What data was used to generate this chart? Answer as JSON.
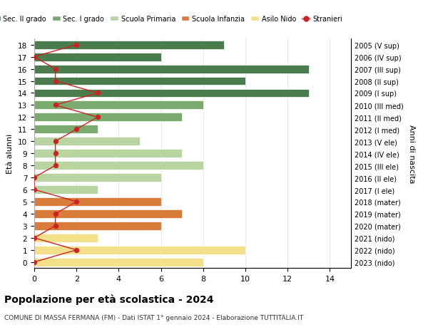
{
  "ages": [
    18,
    17,
    16,
    15,
    14,
    13,
    12,
    11,
    10,
    9,
    8,
    7,
    6,
    5,
    4,
    3,
    2,
    1,
    0
  ],
  "anni_nascita": [
    "2005 (V sup)",
    "2006 (IV sup)",
    "2007 (III sup)",
    "2008 (II sup)",
    "2009 (I sup)",
    "2010 (III med)",
    "2011 (II med)",
    "2012 (I med)",
    "2013 (V ele)",
    "2014 (IV ele)",
    "2015 (III ele)",
    "2016 (II ele)",
    "2017 (I ele)",
    "2018 (mater)",
    "2019 (mater)",
    "2020 (mater)",
    "2021 (nido)",
    "2022 (nido)",
    "2023 (nido)"
  ],
  "bar_values": [
    9,
    6,
    13,
    10,
    13,
    8,
    7,
    3,
    5,
    7,
    8,
    6,
    3,
    6,
    7,
    6,
    3,
    10,
    8
  ],
  "bar_colors": [
    "#4a7c4e",
    "#4a7c4e",
    "#4a7c4e",
    "#4a7c4e",
    "#4a7c4e",
    "#7aab6e",
    "#7aab6e",
    "#7aab6e",
    "#b8d4a0",
    "#b8d4a0",
    "#b8d4a0",
    "#b8d4a0",
    "#b8d4a0",
    "#d97b3a",
    "#d97b3a",
    "#d97b3a",
    "#f5e08a",
    "#f5e08a",
    "#f5e08a"
  ],
  "stranieri_values": [
    2,
    0,
    1,
    1,
    3,
    1,
    3,
    2,
    1,
    1,
    1,
    0,
    0,
    2,
    1,
    1,
    0,
    2,
    0
  ],
  "stranieri_color": "#cc2222",
  "legend_labels": [
    "Sec. II grado",
    "Sec. I grado",
    "Scuola Primaria",
    "Scuola Infanzia",
    "Asilo Nido",
    "Stranieri"
  ],
  "legend_colors": [
    "#4a7c4e",
    "#7aab6e",
    "#b8d4a0",
    "#d97b3a",
    "#f5e08a",
    "#cc2222"
  ],
  "title": "Popolazione per età scolastica - 2024",
  "subtitle": "COMUNE DI MASSA FERMANA (FM) - Dati ISTAT 1° gennaio 2024 - Elaborazione TUTTITALIA.IT",
  "ylabel": "Età alunni",
  "ylabel2": "Anni di nascita",
  "xlabel_vals": [
    0,
    2,
    4,
    6,
    8,
    10,
    12,
    14
  ],
  "xlim": [
    0,
    15
  ],
  "background_color": "#ffffff",
  "grid_color": "#dddddd"
}
